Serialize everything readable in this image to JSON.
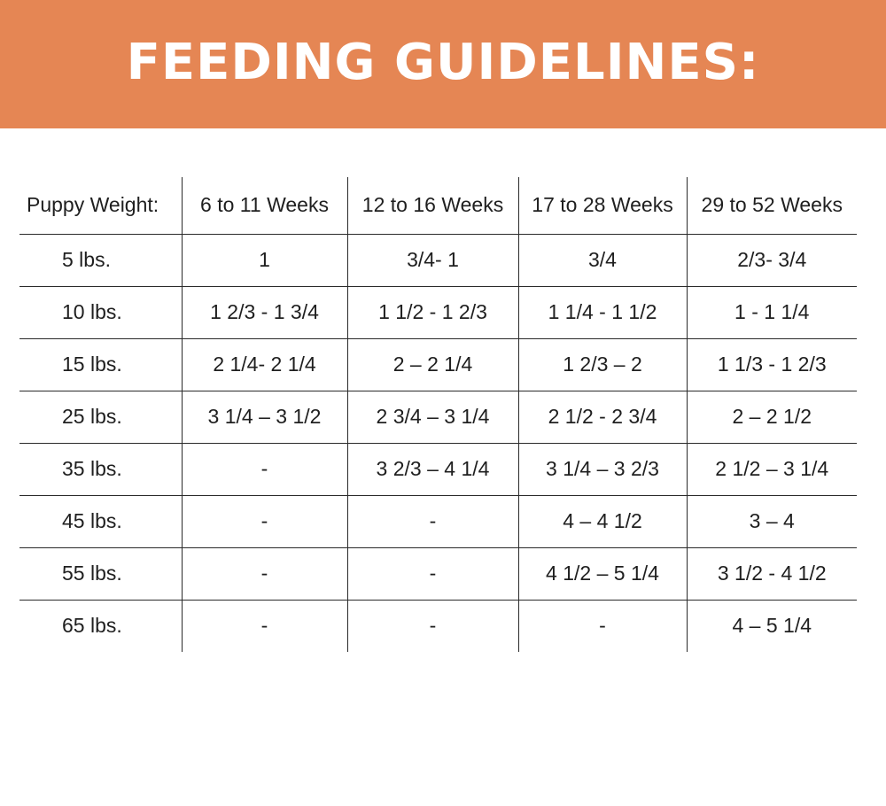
{
  "header": {
    "title": "FEEDING GUIDELINES:"
  },
  "table": {
    "columns": [
      "Puppy Weight:",
      "6 to 11 Weeks",
      "12 to 16 Weeks",
      "17 to 28 Weeks",
      "29 to 52 Weeks"
    ],
    "rows": [
      {
        "weight": "5 lbs.",
        "cells": [
          "1",
          "3/4- 1",
          "3/4",
          "2/3- 3/4"
        ]
      },
      {
        "weight": "10 lbs.",
        "cells": [
          "1 2/3 - 1 3/4",
          "1 1/2 - 1 2/3",
          "1 1/4 - 1 1/2",
          "1 - 1 1/4"
        ]
      },
      {
        "weight": "15 lbs.",
        "cells": [
          "2 1/4- 2 1/4",
          "2 – 2 1/4",
          "1 2/3 – 2",
          "1 1/3 - 1 2/3"
        ]
      },
      {
        "weight": "25 lbs.",
        "cells": [
          "3 1/4 – 3 1/2",
          "2 3/4 – 3 1/4",
          "2 1/2 - 2 3/4",
          "2 – 2 1/2"
        ]
      },
      {
        "weight": "35 lbs.",
        "cells": [
          "-",
          "3 2/3 – 4 1/4",
          "3 1/4 – 3 2/3",
          "2 1/2 – 3 1/4"
        ]
      },
      {
        "weight": "45 lbs.",
        "cells": [
          "-",
          "-",
          "4 – 4 1/2",
          "3 – 4"
        ]
      },
      {
        "weight": "55 lbs.",
        "cells": [
          "-",
          "-",
          "4 1/2 – 5 1/4",
          "3 1/2 - 4 1/2"
        ]
      },
      {
        "weight": "65 lbs.",
        "cells": [
          "-",
          "-",
          "-",
          "4 – 5 1/4"
        ]
      }
    ]
  },
  "colors": {
    "banner": "#e58654",
    "title_text": "#ffffff",
    "grid_lines": "#2a2a2a"
  }
}
